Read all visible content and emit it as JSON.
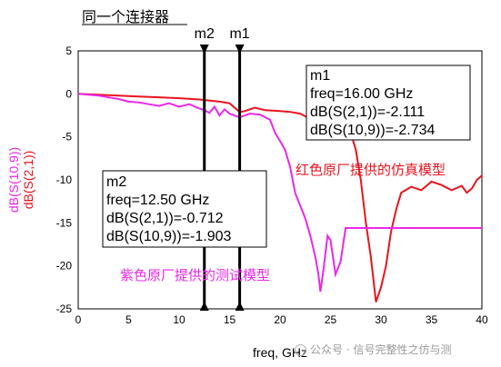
{
  "chart_data": {
    "type": "line",
    "title": "同一个连接器",
    "xlabel": "freq, GHz",
    "ylabel": [
      "dB(S(10,9))",
      "dB(S(2,1))"
    ],
    "xlim": [
      0,
      40
    ],
    "ylim": [
      -25,
      5
    ],
    "x_ticks": [
      0,
      5,
      10,
      15,
      20,
      25,
      30,
      35,
      40
    ],
    "y_ticks": [
      5,
      0,
      -5,
      -10,
      -15,
      -20,
      -25
    ],
    "grid": false,
    "colors": {
      "red": "#e8141e",
      "magenta": "#ea28e8"
    },
    "series": [
      {
        "name": "dB(S(2,1))",
        "color": "#e8141e",
        "points": [
          [
            0,
            0
          ],
          [
            1,
            -0.05
          ],
          [
            2,
            -0.1
          ],
          [
            4,
            -0.2
          ],
          [
            6,
            -0.3
          ],
          [
            8,
            -0.4
          ],
          [
            10,
            -0.5
          ],
          [
            12,
            -0.65
          ],
          [
            12.5,
            -0.712
          ],
          [
            14,
            -0.9
          ],
          [
            15,
            -1.1
          ],
          [
            16,
            -2.111
          ],
          [
            16.5,
            -2.0
          ],
          [
            17.5,
            -1.6
          ],
          [
            18.5,
            -1.9
          ],
          [
            20,
            -2.0
          ],
          [
            21,
            -2.1
          ],
          [
            22,
            -2.3
          ],
          [
            23,
            -2.9
          ],
          [
            24,
            -2.6
          ],
          [
            25,
            -2.4
          ],
          [
            25.5,
            -3.5
          ],
          [
            26,
            -3.0
          ],
          [
            27,
            -4.5
          ],
          [
            27.5,
            -6.5
          ],
          [
            28,
            -10
          ],
          [
            28.5,
            -15
          ],
          [
            29,
            -19
          ],
          [
            29.5,
            -24.2
          ],
          [
            30,
            -22.5
          ],
          [
            30.5,
            -20
          ],
          [
            31,
            -16
          ],
          [
            31.5,
            -13.5
          ],
          [
            32,
            -11.5
          ],
          [
            33,
            -10.8
          ],
          [
            34,
            -11.2
          ],
          [
            35,
            -10.2
          ],
          [
            36,
            -10.6
          ],
          [
            37,
            -11.2
          ],
          [
            38,
            -10.7
          ],
          [
            38.5,
            -11.5
          ],
          [
            39,
            -11.0
          ],
          [
            39.5,
            -10
          ],
          [
            40,
            -9.5
          ]
        ]
      },
      {
        "name": "dB(S(10,9))",
        "color": "#ea28e8",
        "points": [
          [
            0,
            0
          ],
          [
            2,
            -0.2
          ],
          [
            4,
            -0.6
          ],
          [
            5,
            -0.9
          ],
          [
            6,
            -1.0
          ],
          [
            7,
            -1.2
          ],
          [
            8,
            -1.4
          ],
          [
            9,
            -1.1
          ],
          [
            10,
            -1.5
          ],
          [
            11,
            -1.2
          ],
          [
            12,
            -1.7
          ],
          [
            12.5,
            -1.903
          ],
          [
            13,
            -2.2
          ],
          [
            13.5,
            -1.5
          ],
          [
            14,
            -2.5
          ],
          [
            14.5,
            -1.8
          ],
          [
            15,
            -2.3
          ],
          [
            16,
            -2.734
          ],
          [
            17,
            -2.3
          ],
          [
            18,
            -2.4
          ],
          [
            19,
            -3.0
          ],
          [
            19.5,
            -4.5
          ],
          [
            20,
            -5.5
          ],
          [
            20.5,
            -6.5
          ],
          [
            21,
            -8.5
          ],
          [
            21.5,
            -11.5
          ],
          [
            22,
            -13
          ],
          [
            22.5,
            -14.5
          ],
          [
            23,
            -16.5
          ],
          [
            23.5,
            -19
          ],
          [
            23.8,
            -21
          ],
          [
            24,
            -23
          ],
          [
            24.3,
            -20.5
          ],
          [
            24.7,
            -16.5
          ],
          [
            25,
            -17
          ],
          [
            25.5,
            -21
          ],
          [
            26,
            -19.5
          ],
          [
            26.5,
            -15.6
          ],
          [
            40,
            -15.6
          ]
        ]
      }
    ],
    "markers": [
      {
        "name": "m2",
        "x": 12.5,
        "lines": [
          "m2",
          "freq=12.50 GHz",
          "dB(S(2,1))=-0.712",
          "dB(S(10,9))=-1.903"
        ]
      },
      {
        "name": "m1",
        "x": 16.0,
        "lines": [
          "m1",
          "freq=16.00 GHz",
          "dB(S(2,1))=-2.111",
          "dB(S(10,9))=-2.734"
        ]
      }
    ],
    "annotations": [
      {
        "text": "红色原厂提供的仿真模型",
        "color": "#e8141e"
      },
      {
        "text": "紫色原厂提供的测试模型",
        "color": "#ea28e8"
      }
    ]
  },
  "watermark": "公众号 · 信号完整性之仿与测"
}
